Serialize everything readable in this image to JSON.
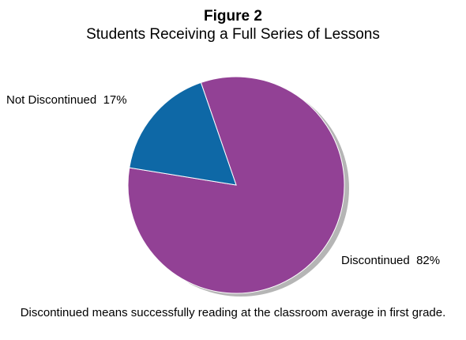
{
  "figure_label": "Figure 2",
  "chart_data": {
    "type": "pie",
    "title": "Students Receiving a Full Series of Lessons",
    "slices": [
      {
        "label": "Discontinued",
        "value": 82,
        "value_label": "82%",
        "color": "#924195"
      },
      {
        "label": "Not Discontinued",
        "value": 17,
        "value_label": "17%",
        "color": "#0e68a6"
      }
    ],
    "shadow_color": "#b5b5b5",
    "note": "Discontinued means successfully reading at the classroom average in first grade."
  }
}
